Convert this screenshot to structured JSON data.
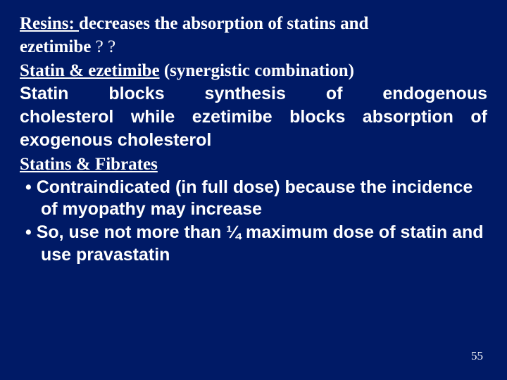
{
  "background_color": "#001a66",
  "text_color": "#ffffff",
  "fonts": {
    "serif": "Times New Roman",
    "sans": "Arial"
  },
  "lines": {
    "resins_label": "Resins: ",
    "resins_text1": "decreases the absorption of statins and",
    "resins_text2": "ezetimibe",
    "resins_qq": "  ? ?",
    "se_label": "Statin & ezetimibe",
    "se_paren": " (synergistic combination)",
    "se_body_l1": "Statin blocks synthesis of endogenous",
    "se_body_l2": "cholesterol while ezetimibe blocks absorption of",
    "se_body_l3": "exogenous cholesterol",
    "sf_label": "Statins & Fibrates",
    "bullet1": "Contraindicated (in full dose) because the incidence of myopathy may increase",
    "bullet2": "So, use not more than ¼ maximum dose of statin and use pravastatin"
  },
  "page_number": "55",
  "font_size_body": 25,
  "font_size_pagenum": 17
}
